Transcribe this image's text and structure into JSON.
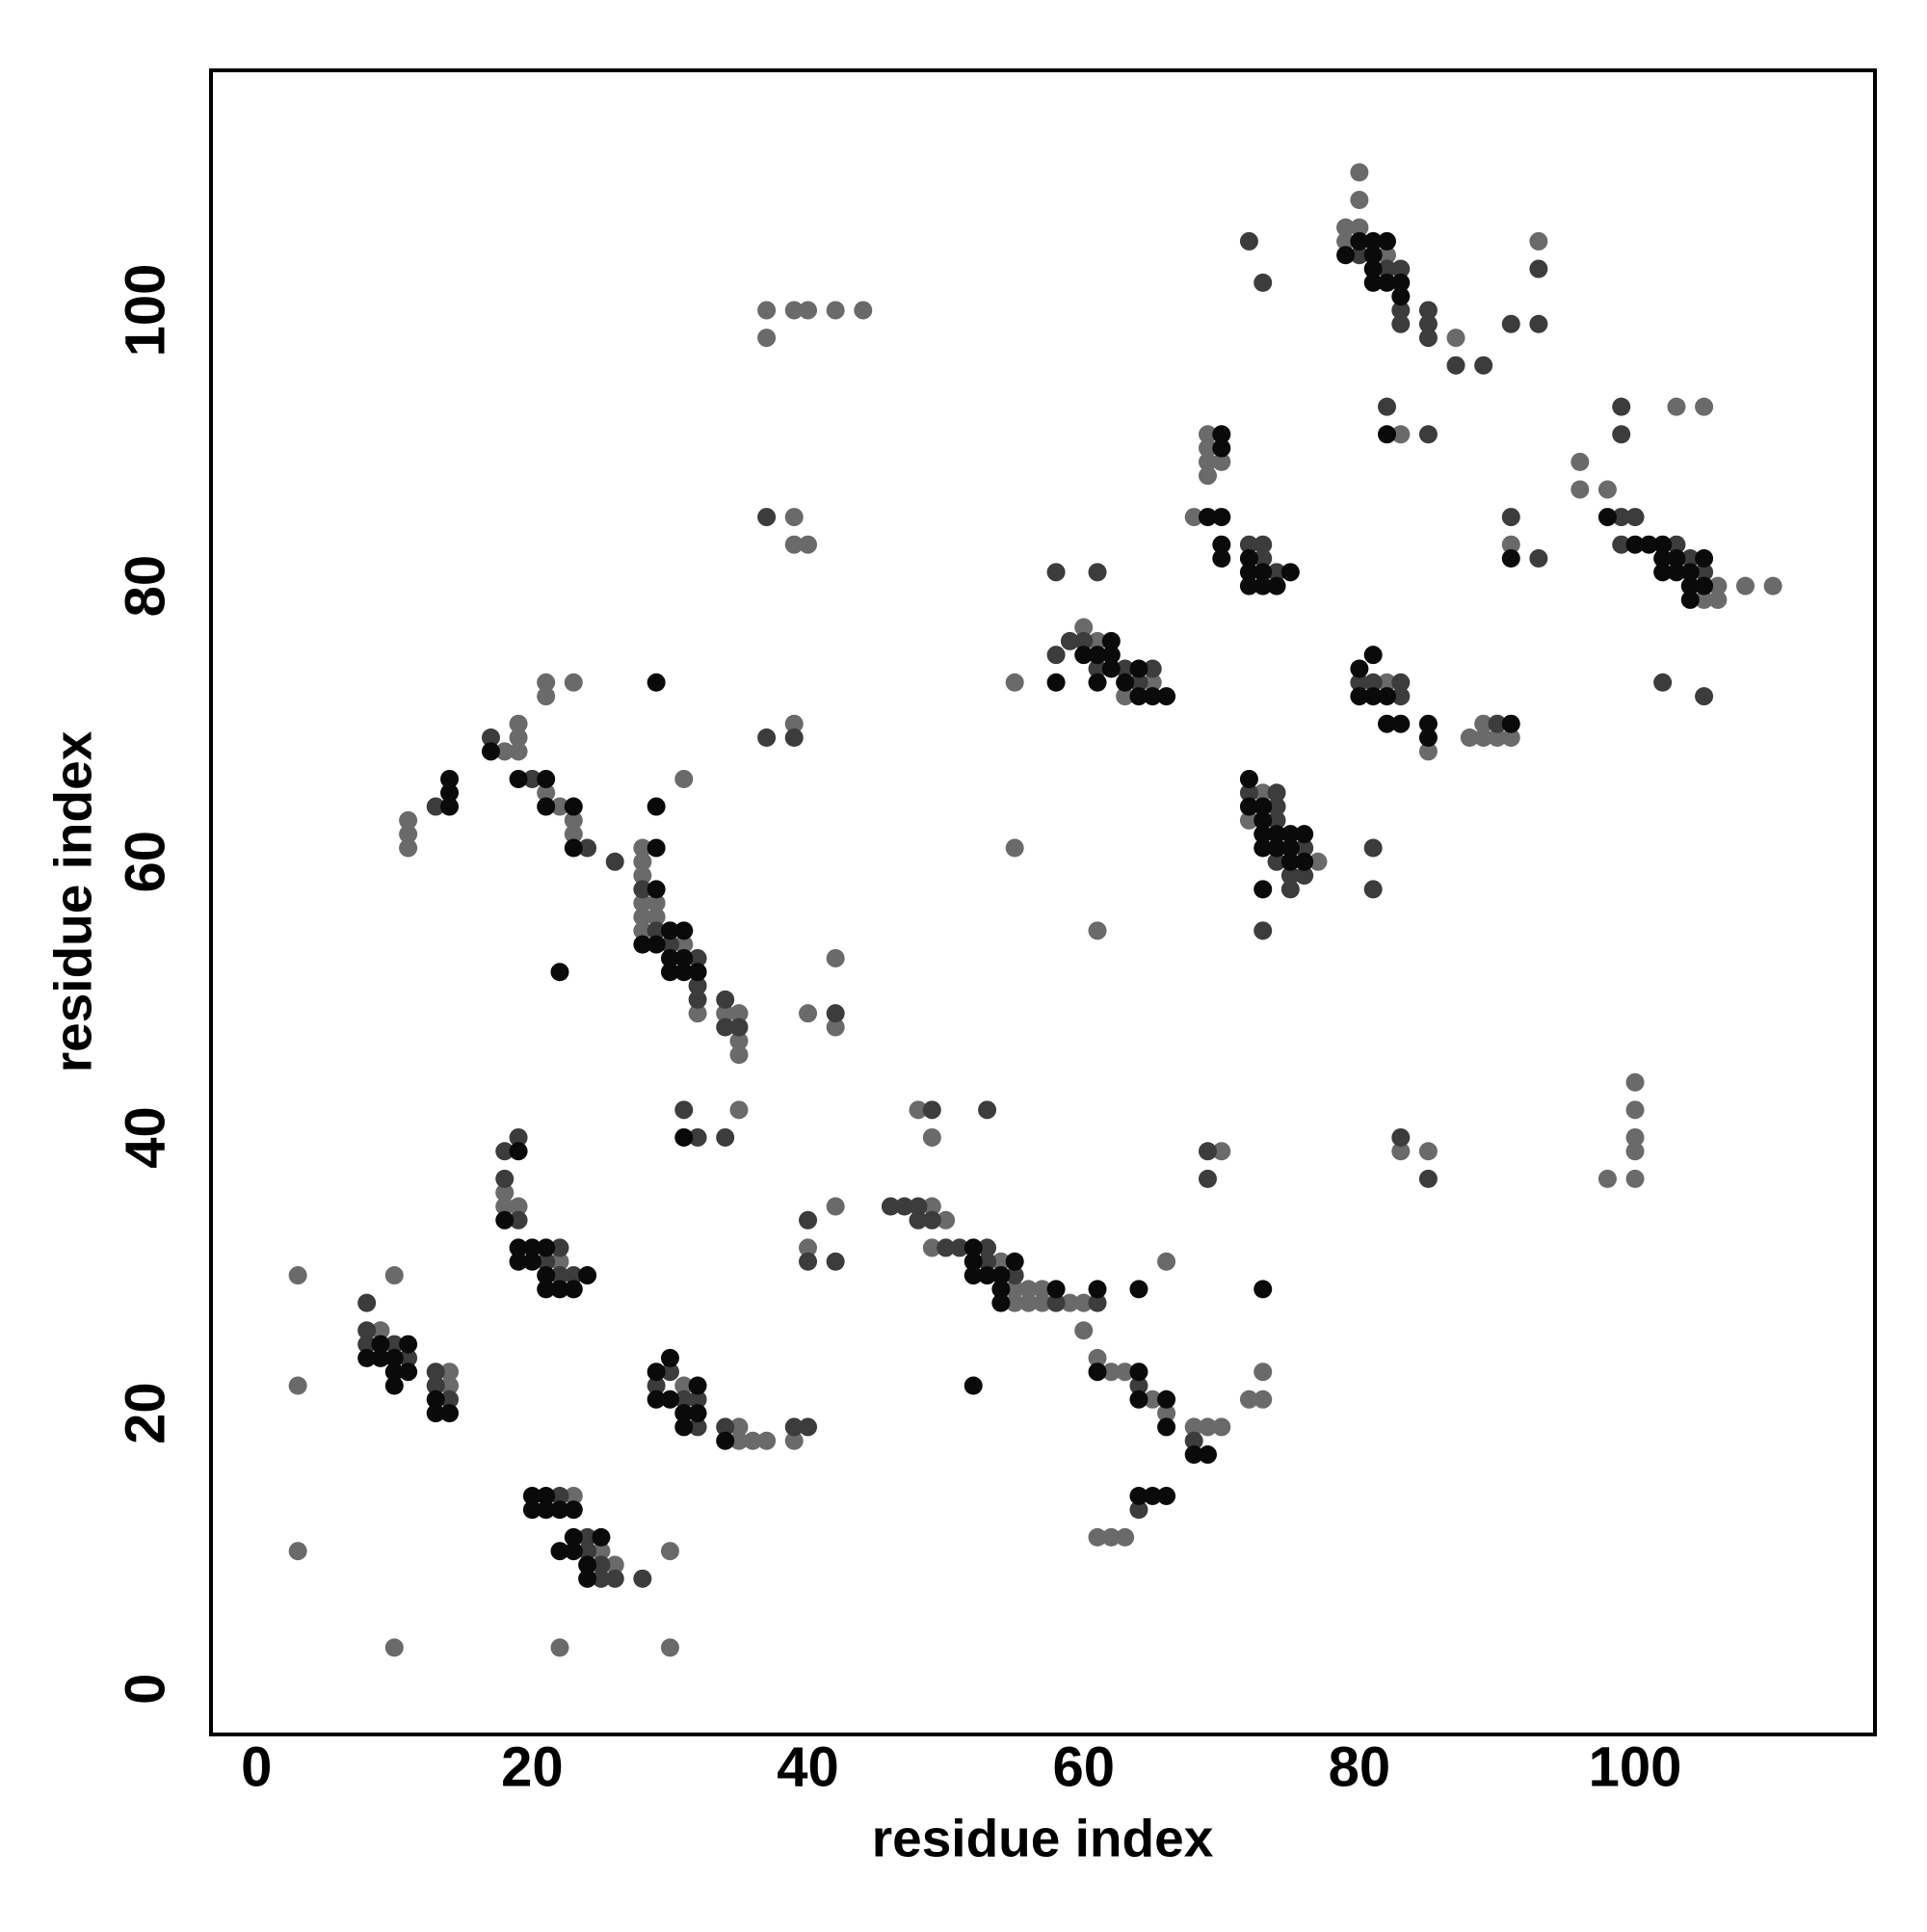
{
  "chart_data": {
    "type": "scatter",
    "xlabel": "residue index",
    "ylabel": "residue index",
    "xlim": [
      -3.3,
      117.4
    ],
    "ylim": [
      -3.3,
      117.4
    ],
    "xticks": [
      0,
      20,
      40,
      60,
      80,
      100
    ],
    "yticks": [
      0,
      20,
      40,
      60,
      80,
      100
    ],
    "grid": false,
    "series": [
      {
        "color": "#6a6a6a",
        "x": [
          3,
          3,
          3,
          10,
          22,
          30,
          10,
          9,
          14,
          14,
          18,
          18,
          19,
          22,
          31,
          35,
          35,
          36,
          37,
          39,
          23,
          25,
          26,
          30,
          11,
          11,
          11,
          18,
          19,
          19,
          19,
          21,
          21,
          21,
          23,
          22,
          23,
          23,
          28,
          28,
          28,
          28,
          29,
          28,
          29,
          28,
          31,
          32,
          34,
          35,
          35,
          35,
          31,
          35,
          37,
          37,
          39,
          40,
          42,
          44,
          39,
          39,
          40,
          39,
          40,
          42,
          42,
          42,
          40,
          49,
          50,
          48,
          49,
          49,
          54,
          55,
          56,
          57,
          55,
          56,
          57,
          59,
          60,
          66,
          60,
          61,
          62,
          63,
          65,
          66,
          68,
          69,
          70,
          72,
          73,
          73,
          61,
          62,
          63,
          55,
          55,
          61,
          60,
          61,
          63,
          65,
          68,
          69,
          69,
          69,
          69,
          70,
          73,
          72,
          77,
          70,
          79,
          80,
          80,
          80,
          79,
          82,
          87,
          93,
          83,
          82,
          85,
          88,
          89,
          89,
          90,
          91,
          83,
          85,
          91,
          96,
          96,
          98,
          106,
          105,
          106,
          108,
          110,
          103,
          105,
          98,
          100,
          100,
          100,
          100,
          100
        ],
        "y": [
          30,
          22,
          10,
          3,
          3,
          3,
          30,
          26,
          23,
          22,
          36,
          35,
          35,
          31,
          22,
          19,
          18,
          18,
          18,
          18,
          14,
          10,
          9,
          10,
          63,
          62,
          61,
          68,
          70,
          69,
          68,
          65,
          73,
          72,
          73,
          64,
          63,
          62,
          61,
          60,
          59,
          57,
          57,
          56,
          56,
          55,
          54,
          49,
          49,
          49,
          47,
          46,
          66,
          42,
          100,
          98,
          100,
          100,
          100,
          100,
          85,
          83,
          83,
          70,
          49,
          53,
          48,
          35,
          32,
          35,
          34,
          42,
          40,
          32,
          31,
          29,
          29,
          29,
          28,
          28,
          28,
          28,
          28,
          31,
          26,
          24,
          23,
          23,
          21,
          20,
          19,
          19,
          19,
          21,
          21,
          23,
          11,
          11,
          11,
          73,
          61,
          55,
          77,
          76,
          72,
          73,
          85,
          91,
          90,
          89,
          88,
          89,
          65,
          63,
          60,
          39,
          106,
          110,
          108,
          106,
          105,
          104,
          98,
          105,
          91,
          73,
          68,
          69,
          69,
          70,
          69,
          69,
          39,
          39,
          83,
          89,
          87,
          87,
          80,
          79,
          79,
          80,
          80,
          93,
          93,
          37,
          44,
          42,
          40,
          39,
          37
        ]
      },
      {
        "color": "#3c3c3c",
        "x": [
          8,
          8,
          8,
          10,
          11,
          13,
          13,
          14,
          18,
          19,
          18,
          19,
          22,
          21,
          22,
          23,
          30,
          29,
          31,
          32,
          32,
          34,
          39,
          40,
          22,
          24,
          24,
          25,
          25,
          26,
          28,
          13,
          17,
          20,
          24,
          26,
          28,
          29,
          30,
          32,
          32,
          32,
          34,
          34,
          35,
          31,
          32,
          34,
          37,
          39,
          37,
          42,
          40,
          40,
          42,
          46,
          47,
          48,
          48,
          49,
          49,
          53,
          50,
          51,
          53,
          53,
          55,
          58,
          61,
          64,
          68,
          64,
          58,
          61,
          58,
          59,
          60,
          61,
          63,
          65,
          64,
          72,
          73,
          73,
          74,
          72,
          73,
          72,
          74,
          74,
          74,
          76,
          74,
          75,
          76,
          75,
          73,
          69,
          69,
          80,
          82,
          83,
          83,
          83,
          85,
          85,
          85,
          87,
          89,
          91,
          93,
          93,
          82,
          85,
          80,
          81,
          83,
          83,
          81,
          81,
          90,
          83,
          85,
          91,
          93,
          99,
          99,
          99,
          100,
          99,
          103,
          104,
          105,
          102,
          105
        ],
        "y": [
          28,
          26,
          25,
          25,
          24,
          23,
          22,
          21,
          39,
          40,
          37,
          34,
          32,
          31,
          30,
          30,
          23,
          22,
          21,
          21,
          19,
          19,
          19,
          19,
          14,
          11,
          10,
          9,
          8,
          8,
          8,
          64,
          69,
          66,
          61,
          60,
          58,
          55,
          54,
          53,
          51,
          50,
          50,
          48,
          48,
          42,
          40,
          40,
          85,
          69,
          69,
          49,
          34,
          31,
          31,
          35,
          35,
          35,
          34,
          34,
          42,
          42,
          32,
          32,
          32,
          31,
          30,
          28,
          28,
          22,
          18,
          13,
          81,
          81,
          75,
          76,
          76,
          74,
          74,
          74,
          73,
          83,
          83,
          82,
          81,
          105,
          102,
          65,
          65,
          64,
          63,
          61,
          60,
          59,
          59,
          58,
          55,
          39,
          37,
          104,
          103,
          103,
          100,
          99,
          100,
          99,
          98,
          96,
          96,
          99,
          103,
          99,
          93,
          91,
          73,
          73,
          73,
          72,
          61,
          58,
          70,
          40,
          37,
          85,
          82,
          93,
          91,
          85,
          85,
          83,
          83,
          82,
          81,
          73,
          72
        ]
      },
      {
        "color": "#0a0a0a",
        "x": [
          9,
          11,
          8,
          9,
          10,
          10,
          11,
          10,
          13,
          13,
          14,
          19,
          18,
          19,
          20,
          21,
          19,
          20,
          21,
          24,
          21,
          22,
          23,
          29,
          30,
          32,
          29,
          30,
          31,
          32,
          31,
          34,
          20,
          21,
          20,
          21,
          22,
          23,
          22,
          23,
          25,
          23,
          24,
          24,
          14,
          14,
          14,
          17,
          19,
          21,
          21,
          23,
          23,
          22,
          29,
          29,
          29,
          29,
          30,
          31,
          28,
          29,
          30,
          31,
          30,
          31,
          32,
          31,
          52,
          52,
          55,
          52,
          53,
          54,
          54,
          58,
          54,
          61,
          64,
          52,
          61,
          64,
          64,
          66,
          66,
          68,
          69,
          73,
          64,
          65,
          66,
          58,
          60,
          61,
          62,
          62,
          61,
          62,
          63,
          64,
          64,
          65,
          66,
          69,
          70,
          70,
          70,
          70,
          70,
          72,
          72,
          72,
          73,
          74,
          73,
          75,
          72,
          72,
          73,
          73,
          73,
          74,
          75,
          76,
          73,
          74,
          75,
          75,
          76,
          73,
          79,
          80,
          81,
          81,
          82,
          81,
          81,
          82,
          83,
          83,
          82,
          80,
          81,
          80,
          81,
          82,
          82,
          83,
          85,
          85,
          91,
          91,
          98,
          100,
          101,
          102,
          102,
          103,
          105,
          102,
          103,
          104,
          104,
          105,
          104
        ],
        "y": [
          25,
          25,
          24,
          24,
          24,
          23,
          23,
          22,
          21,
          20,
          20,
          39,
          34,
          32,
          32,
          32,
          31,
          31,
          30,
          30,
          29,
          29,
          29,
          23,
          24,
          22,
          21,
          21,
          20,
          20,
          19,
          18,
          14,
          14,
          13,
          13,
          13,
          13,
          10,
          11,
          11,
          10,
          9,
          8,
          66,
          65,
          64,
          68,
          66,
          66,
          64,
          64,
          61,
          52,
          73,
          64,
          61,
          58,
          55,
          55,
          54,
          54,
          53,
          53,
          52,
          52,
          52,
          40,
          32,
          31,
          31,
          30,
          30,
          30,
          29,
          29,
          28,
          29,
          29,
          22,
          23,
          23,
          21,
          21,
          19,
          17,
          17,
          29,
          14,
          14,
          14,
          73,
          75,
          75,
          76,
          75,
          73,
          74,
          73,
          74,
          72,
          72,
          72,
          85,
          91,
          90,
          85,
          83,
          82,
          82,
          81,
          80,
          80,
          80,
          81,
          81,
          66,
          64,
          64,
          63,
          62,
          62,
          62,
          62,
          61,
          61,
          61,
          60,
          60,
          58,
          104,
          105,
          105,
          104,
          105,
          103,
          102,
          102,
          102,
          101,
          91,
          74,
          75,
          72,
          72,
          72,
          70,
          70,
          70,
          69,
          70,
          82,
          85,
          83,
          83,
          83,
          82,
          82,
          82,
          81,
          81,
          81,
          80,
          80,
          79
        ]
      }
    ]
  }
}
